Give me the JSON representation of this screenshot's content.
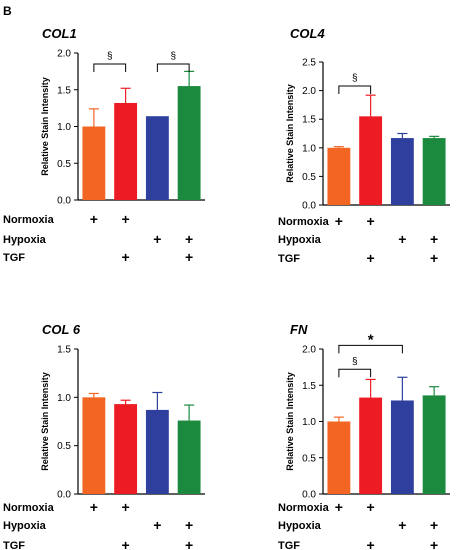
{
  "figure": {
    "panel_label": "B",
    "row_labels": [
      "Normoxia",
      "Hypoxia",
      "TGF"
    ],
    "plus_symbol": "+",
    "plus_matrix": [
      [
        true,
        true,
        false,
        false
      ],
      [
        false,
        false,
        true,
        true
      ],
      [
        false,
        true,
        false,
        true
      ]
    ]
  },
  "colors": {
    "bar_colors": [
      "#f26522",
      "#ed1c24",
      "#2e3f9e",
      "#1b8a3e"
    ],
    "axis": "#000000"
  },
  "chart_data": [
    {
      "type": "bar",
      "title": "COL1",
      "ylabel": "Relative Stain Intensity",
      "ylim": [
        0,
        2.0
      ],
      "yticks": [
        0,
        0.5,
        1.0,
        1.5,
        2.0
      ],
      "ytick_labels": [
        "0.0",
        "0.5",
        "1.0",
        "1.5",
        "2.0"
      ],
      "values": [
        1.0,
        1.32,
        1.14,
        1.55
      ],
      "errors": [
        0.24,
        0.2,
        0.0,
        0.2
      ],
      "significance": [
        {
          "from": 0,
          "to": 1,
          "label": "§",
          "level": 1.85
        },
        {
          "from": 2,
          "to": 3,
          "label": "§",
          "level": 1.85
        }
      ]
    },
    {
      "type": "bar",
      "title": "COL4",
      "ylabel": "Relative Stain Intensity",
      "ylim": [
        0,
        2.5
      ],
      "yticks": [
        0,
        0.5,
        1.0,
        1.5,
        2.0,
        2.5
      ],
      "ytick_labels": [
        "0.0",
        "0.5",
        "1.0",
        "1.5",
        "2.0",
        "2.5"
      ],
      "values": [
        1.0,
        1.55,
        1.17,
        1.17
      ],
      "errors": [
        0.02,
        0.37,
        0.08,
        0.03
      ],
      "significance": [
        {
          "from": 0,
          "to": 1,
          "label": "§",
          "level": 2.08
        }
      ]
    },
    {
      "type": "bar",
      "title": "COL 6",
      "ylabel": "Relative Stain Intensity",
      "ylim": [
        0,
        1.5
      ],
      "yticks": [
        0,
        0.5,
        1.0,
        1.5
      ],
      "ytick_labels": [
        "0.0",
        "0.5",
        "1.0",
        "1.5"
      ],
      "values": [
        1.0,
        0.93,
        0.87,
        0.76
      ],
      "errors": [
        0.04,
        0.04,
        0.18,
        0.16
      ],
      "significance": []
    },
    {
      "type": "bar",
      "title": "FN",
      "ylabel": "Relative Stain Intensity",
      "ylim": [
        0,
        2.0
      ],
      "yticks": [
        0,
        0.5,
        1.0,
        1.5,
        2.0
      ],
      "ytick_labels": [
        "0.0",
        "0.5",
        "1.0",
        "1.5",
        "2.0"
      ],
      "values": [
        1.0,
        1.33,
        1.29,
        1.36
      ],
      "errors": [
        0.06,
        0.25,
        0.32,
        0.12
      ],
      "significance": [
        {
          "from": 0,
          "to": 1,
          "label": "§",
          "level": 1.72
        },
        {
          "from": 0,
          "to": 2,
          "label": "*",
          "level": 2.05
        }
      ]
    }
  ]
}
